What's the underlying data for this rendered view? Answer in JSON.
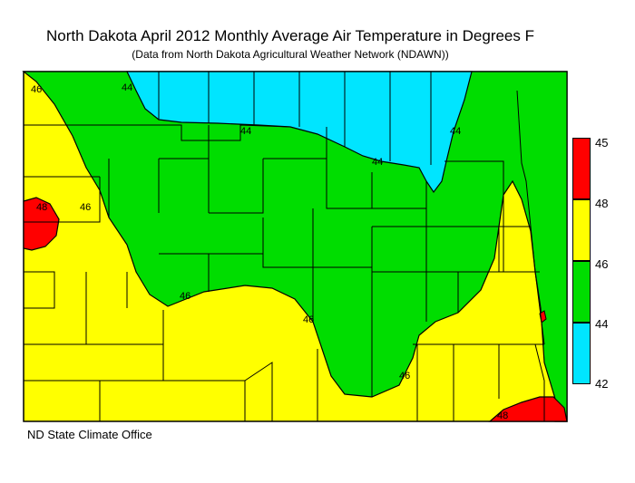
{
  "title": "North Dakota April 2012 Monthly Average Air Temperature in Degrees F",
  "subtitle": "(Data from North Dakota Agricultural Weather Network (NDAWN))",
  "credit": "ND State Climate Office",
  "contour_labels": [
    "46",
    "44",
    "44",
    "44",
    "44",
    "46",
    "46",
    "46",
    "46",
    "48",
    "48"
  ],
  "legend": {
    "labels": [
      "45",
      "48",
      "46",
      "44",
      "42"
    ],
    "colors": [
      "#ff0000",
      "#ffff00",
      "#00dd00",
      "#00e5ff"
    ]
  },
  "colors": {
    "warm": "#ff0000",
    "mild": "#ffff00",
    "cool": "#00dd00",
    "cold": "#00e5ff"
  }
}
